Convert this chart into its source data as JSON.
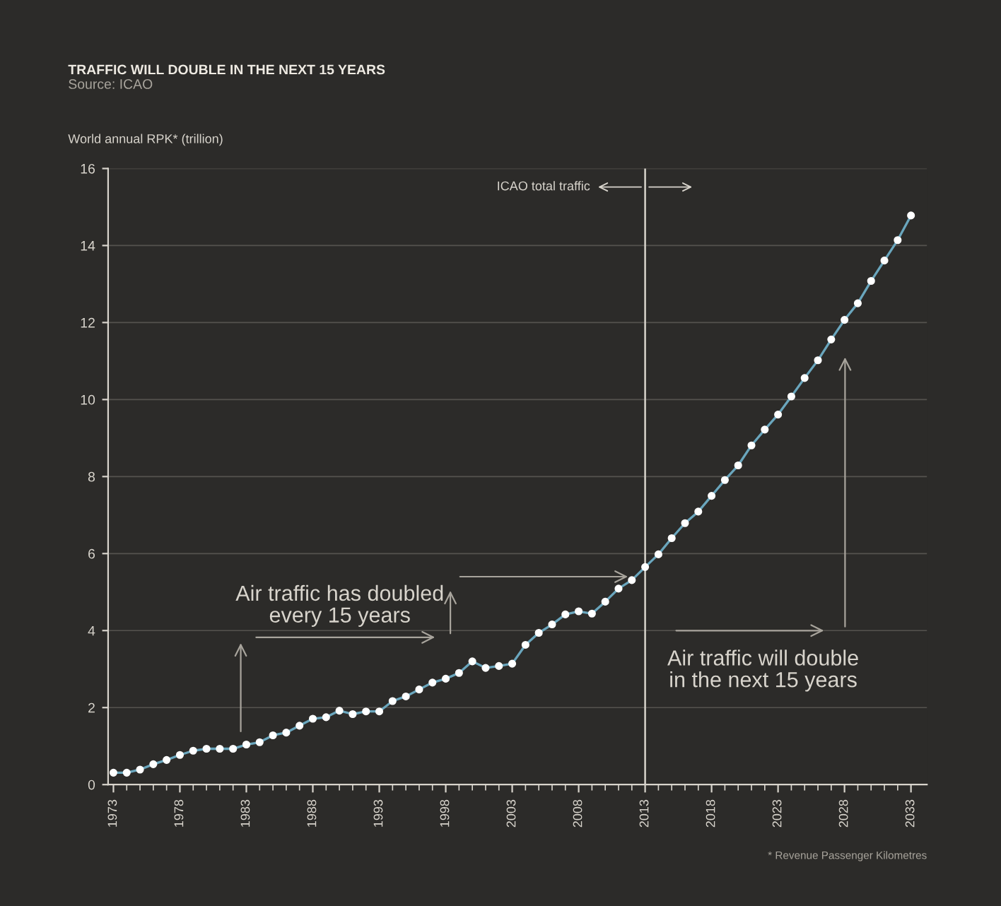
{
  "chart_data": {
    "type": "line",
    "title": "TRAFFIC WILL DOUBLE IN THE NEXT 15 YEARS",
    "subtitle": "Source: ICAO",
    "ylabel": "World annual RPK* (trillion)",
    "x": [
      1973,
      1974,
      1975,
      1976,
      1977,
      1978,
      1979,
      1980,
      1981,
      1982,
      1983,
      1984,
      1985,
      1986,
      1987,
      1988,
      1989,
      1990,
      1991,
      1992,
      1993,
      1994,
      1995,
      1996,
      1997,
      1998,
      1999,
      2000,
      2001,
      2002,
      2003,
      2004,
      2005,
      2006,
      2007,
      2008,
      2009,
      2010,
      2011,
      2012,
      2013,
      2014,
      2015,
      2016,
      2017,
      2018,
      2019,
      2020,
      2021,
      2022,
      2023,
      2024,
      2025,
      2026,
      2027,
      2028,
      2029,
      2030,
      2031,
      2032,
      2033
    ],
    "series": [
      {
        "color": "#6aa6bd",
        "values": [
          0.31,
          0.31,
          0.39,
          0.53,
          0.64,
          0.77,
          0.88,
          0.93,
          0.93,
          0.93,
          1.04,
          1.1,
          1.28,
          1.35,
          1.53,
          1.71,
          1.75,
          1.92,
          1.83,
          1.9,
          1.9,
          2.17,
          2.29,
          2.47,
          2.65,
          2.75,
          2.9,
          3.2,
          3.03,
          3.08,
          3.14,
          3.63,
          3.94,
          4.16,
          4.42,
          4.5,
          4.44,
          4.75,
          5.09,
          5.31,
          5.65,
          5.98,
          6.4,
          6.79,
          7.09,
          7.5,
          7.91,
          8.29,
          8.81,
          9.22,
          9.61,
          10.08,
          10.56,
          11.02,
          11.56,
          12.07,
          12.5,
          13.08,
          13.61,
          14.14,
          14.78
        ]
      }
    ],
    "xlim": [
      1972.6,
      2034.2
    ],
    "ylim": [
      0,
      16
    ],
    "xticks": [
      1973,
      1978,
      1983,
      1988,
      1993,
      1998,
      2003,
      2008,
      2013,
      2018,
      2023,
      2028,
      2033
    ],
    "yticks": [
      0,
      2,
      4,
      6,
      8,
      10,
      12,
      14,
      16
    ],
    "ref_lines": [
      {
        "axis": "x",
        "value": 2013,
        "label": "ICAO total traffic",
        "color": "#d8d4cc"
      }
    ],
    "annotations": [
      {
        "text": "Air traffic has doubled\nevery 15 years",
        "x": 2012,
        "y": 5.4
      },
      "Air traffic will double\nin the next 15 years",
      "* Revenue Passenger Kilometres"
    ],
    "grid": "y",
    "marker": "circle",
    "line_style": "solid"
  }
}
